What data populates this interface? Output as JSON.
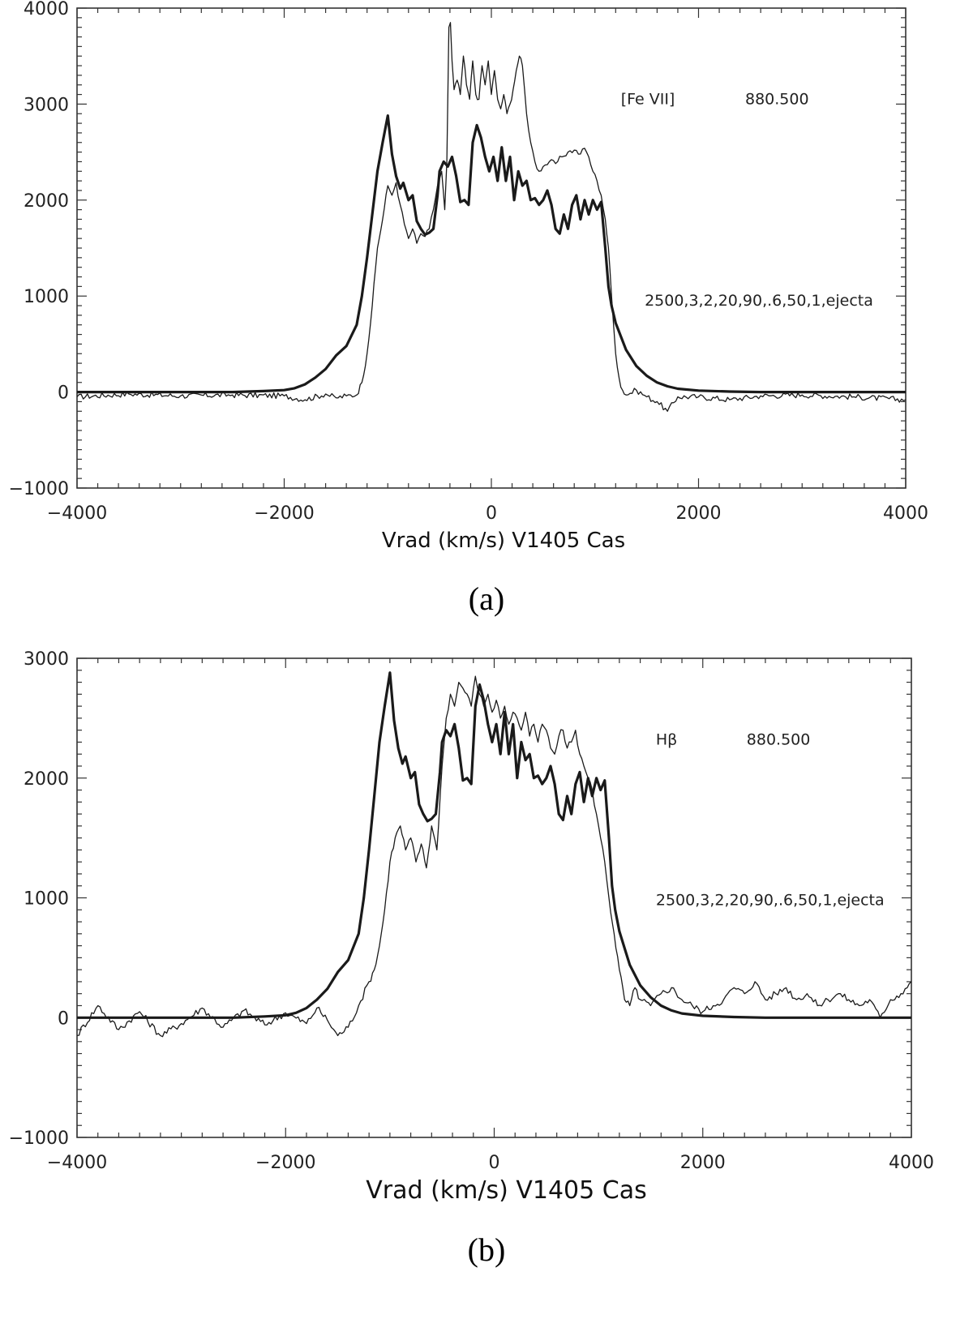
{
  "chart_data": [
    {
      "type": "line",
      "panel_label": "(a)",
      "xlabel": "Vrad (km/s) V1405 Cas",
      "ylabel": "",
      "xlim": [
        -4000,
        4000
      ],
      "ylim": [
        -1000,
        4000
      ],
      "x_ticks": [
        -4000,
        -2000,
        0,
        2000,
        4000
      ],
      "y_ticks": [
        -1000,
        0,
        1000,
        2000,
        3000,
        4000
      ],
      "x_tick_labels": [
        "−4000",
        "−2000",
        "0",
        "2000",
        "4000"
      ],
      "y_tick_labels": [
        "−1000",
        "0",
        "1000",
        "2000",
        "3000",
        "4000"
      ],
      "grid": false,
      "annotations": [
        {
          "text": "[Fe VII]",
          "at": [
            1250,
            3000
          ]
        },
        {
          "text": "880.500",
          "at": [
            2450,
            3000
          ]
        },
        {
          "text": "2500,3,2,20,90,.6,50,1,ejecta",
          "at": [
            1480,
            900
          ]
        }
      ],
      "series": [
        {
          "role": "model",
          "style": "thick",
          "x": [
            -4000,
            -3000,
            -2500,
            -2200,
            -2000,
            -1900,
            -1800,
            -1700,
            -1600,
            -1500,
            -1400,
            -1300,
            -1250,
            -1200,
            -1150,
            -1100,
            -1050,
            -1000,
            -960,
            -920,
            -880,
            -850,
            -800,
            -760,
            -720,
            -680,
            -640,
            -600,
            -560,
            -520,
            -500,
            -460,
            -420,
            -380,
            -340,
            -300,
            -260,
            -220,
            -180,
            -140,
            -100,
            -60,
            -20,
            20,
            60,
            100,
            140,
            180,
            220,
            260,
            300,
            340,
            380,
            420,
            460,
            500,
            540,
            580,
            620,
            660,
            700,
            740,
            780,
            820,
            860,
            900,
            940,
            980,
            1020,
            1060,
            1100,
            1130,
            1160,
            1200,
            1250,
            1300,
            1400,
            1500,
            1600,
            1700,
            1800,
            2000,
            2300,
            2600,
            3000,
            3500,
            4000
          ],
          "y": [
            0,
            0,
            0,
            10,
            20,
            40,
            80,
            150,
            240,
            380,
            480,
            700,
            1000,
            1400,
            1850,
            2300,
            2600,
            2880,
            2480,
            2250,
            2120,
            2180,
            2000,
            2050,
            1780,
            1700,
            1640,
            1660,
            1700,
            2050,
            2300,
            2400,
            2350,
            2450,
            2250,
            1980,
            2000,
            1950,
            2600,
            2780,
            2650,
            2450,
            2300,
            2450,
            2200,
            2550,
            2200,
            2450,
            2000,
            2300,
            2150,
            2200,
            2000,
            2020,
            1950,
            2000,
            2100,
            1950,
            1700,
            1650,
            1850,
            1700,
            1950,
            2050,
            1800,
            2000,
            1850,
            2000,
            1900,
            1980,
            1500,
            1100,
            900,
            720,
            580,
            440,
            270,
            170,
            100,
            60,
            35,
            15,
            5,
            0,
            0,
            0,
            0
          ]
        },
        {
          "role": "observed",
          "style": "thin",
          "x": [
            -4000,
            -3500,
            -3000,
            -2500,
            -2000,
            -1800,
            -1600,
            -1500,
            -1400,
            -1300,
            -1250,
            -1200,
            -1150,
            -1100,
            -1050,
            -1000,
            -960,
            -920,
            -880,
            -840,
            -800,
            -760,
            -720,
            -680,
            -640,
            -600,
            -560,
            -520,
            -480,
            -450,
            -430,
            -410,
            -395,
            -380,
            -360,
            -330,
            -300,
            -270,
            -240,
            -210,
            -180,
            -150,
            -120,
            -90,
            -60,
            -30,
            0,
            30,
            60,
            90,
            120,
            150,
            180,
            210,
            240,
            270,
            300,
            340,
            380,
            420,
            460,
            500,
            560,
            620,
            680,
            740,
            800,
            860,
            900,
            940,
            980,
            1020,
            1060,
            1100,
            1130,
            1160,
            1200,
            1250,
            1300,
            1400,
            1500,
            1600,
            1700,
            1800,
            2000,
            2300,
            2600,
            3000,
            3500,
            4000
          ],
          "y": [
            -50,
            -20,
            -40,
            -30,
            -40,
            -80,
            -20,
            -60,
            -40,
            -30,
            100,
            400,
            900,
            1500,
            1800,
            2150,
            2050,
            2180,
            1950,
            1750,
            1600,
            1700,
            1550,
            1650,
            1620,
            1700,
            1900,
            2150,
            2300,
            1900,
            2400,
            3800,
            3850,
            3450,
            3150,
            3250,
            3100,
            3500,
            3200,
            3050,
            3450,
            3100,
            3050,
            3400,
            3200,
            3450,
            3100,
            3350,
            3050,
            2950,
            3100,
            2900,
            3000,
            3150,
            3350,
            3500,
            3400,
            2900,
            2600,
            2400,
            2300,
            2350,
            2400,
            2380,
            2450,
            2500,
            2520,
            2480,
            2540,
            2450,
            2300,
            2200,
            2050,
            1800,
            1500,
            1000,
            400,
            50,
            -30,
            20,
            -50,
            -100,
            -200,
            -50,
            -50,
            -80,
            -40,
            -30,
            -50,
            -80
          ]
        }
      ]
    },
    {
      "type": "line",
      "panel_label": "(b)",
      "xlabel": "Vrad (km/s) V1405 Cas",
      "ylabel": "",
      "xlim": [
        -4000,
        4000
      ],
      "ylim": [
        -1000,
        3000
      ],
      "x_ticks": [
        -4000,
        -2000,
        0,
        2000,
        4000
      ],
      "y_ticks": [
        -1000,
        0,
        1000,
        2000,
        3000
      ],
      "x_tick_labels": [
        "−4000",
        "−2000",
        "0",
        "2000",
        "4000"
      ],
      "y_tick_labels": [
        "−1000",
        "0",
        "1000",
        "2000",
        "3000"
      ],
      "grid": false,
      "annotations": [
        {
          "text": "Hβ",
          "at": [
            1550,
            2280
          ]
        },
        {
          "text": "880.500",
          "at": [
            2420,
            2280
          ]
        },
        {
          "text": "2500,3,2,20,90,.6,50,1,ejecta",
          "at": [
            1550,
            940
          ]
        }
      ],
      "series": [
        {
          "role": "model",
          "style": "thick",
          "x": [
            -4000,
            -3000,
            -2500,
            -2200,
            -2000,
            -1900,
            -1800,
            -1700,
            -1600,
            -1500,
            -1400,
            -1300,
            -1250,
            -1200,
            -1150,
            -1100,
            -1050,
            -1000,
            -960,
            -920,
            -880,
            -850,
            -800,
            -760,
            -720,
            -680,
            -640,
            -600,
            -560,
            -520,
            -500,
            -460,
            -420,
            -380,
            -340,
            -300,
            -260,
            -220,
            -180,
            -140,
            -100,
            -60,
            -20,
            20,
            60,
            100,
            140,
            180,
            220,
            260,
            300,
            340,
            380,
            420,
            460,
            500,
            540,
            580,
            620,
            660,
            700,
            740,
            780,
            820,
            860,
            900,
            940,
            980,
            1020,
            1060,
            1100,
            1130,
            1160,
            1200,
            1250,
            1300,
            1400,
            1500,
            1600,
            1700,
            1800,
            2000,
            2300,
            2600,
            3000,
            3500,
            4000
          ],
          "y": [
            0,
            0,
            0,
            10,
            20,
            40,
            80,
            150,
            240,
            380,
            480,
            700,
            1000,
            1400,
            1850,
            2300,
            2600,
            2880,
            2480,
            2250,
            2120,
            2180,
            2000,
            2050,
            1780,
            1700,
            1640,
            1660,
            1700,
            2050,
            2300,
            2400,
            2350,
            2450,
            2250,
            1980,
            2000,
            1950,
            2600,
            2780,
            2650,
            2450,
            2300,
            2450,
            2200,
            2550,
            2200,
            2450,
            2000,
            2300,
            2150,
            2200,
            2000,
            2020,
            1950,
            2000,
            2100,
            1950,
            1700,
            1650,
            1850,
            1700,
            1950,
            2050,
            1800,
            2000,
            1850,
            2000,
            1900,
            1980,
            1500,
            1100,
            900,
            720,
            580,
            440,
            270,
            170,
            100,
            60,
            35,
            15,
            5,
            0,
            0,
            0,
            0
          ]
        },
        {
          "role": "observed",
          "style": "thin",
          "x": [
            -4000,
            -3800,
            -3600,
            -3400,
            -3200,
            -3000,
            -2800,
            -2600,
            -2400,
            -2200,
            -2000,
            -1800,
            -1700,
            -1600,
            -1500,
            -1400,
            -1300,
            -1200,
            -1150,
            -1100,
            -1050,
            -1000,
            -950,
            -900,
            -850,
            -800,
            -750,
            -700,
            -650,
            -600,
            -550,
            -500,
            -460,
            -420,
            -380,
            -340,
            -300,
            -260,
            -220,
            -180,
            -140,
            -100,
            -60,
            -20,
            20,
            60,
            100,
            140,
            180,
            220,
            260,
            300,
            340,
            380,
            420,
            460,
            500,
            540,
            580,
            620,
            660,
            700,
            740,
            780,
            820,
            860,
            900,
            940,
            980,
            1020,
            1060,
            1100,
            1150,
            1200,
            1250,
            1300,
            1350,
            1400,
            1500,
            1600,
            1700,
            1800,
            1900,
            2000,
            2100,
            2200,
            2300,
            2400,
            2500,
            2600,
            2700,
            2800,
            2900,
            3000,
            3100,
            3200,
            3300,
            3400,
            3500,
            3600,
            3700,
            3800,
            3900,
            4000
          ],
          "y": [
            -150,
            100,
            -100,
            50,
            -150,
            -50,
            80,
            -80,
            60,
            -60,
            40,
            -50,
            80,
            -20,
            -150,
            -80,
            100,
            300,
            400,
            600,
            900,
            1300,
            1500,
            1600,
            1400,
            1500,
            1300,
            1450,
            1250,
            1600,
            1400,
            2100,
            2500,
            2700,
            2600,
            2800,
            2750,
            2700,
            2600,
            2850,
            2700,
            2600,
            2700,
            2550,
            2650,
            2500,
            2600,
            2450,
            2550,
            2500,
            2400,
            2550,
            2350,
            2450,
            2300,
            2450,
            2400,
            2250,
            2200,
            2350,
            2400,
            2250,
            2300,
            2400,
            2200,
            2100,
            2000,
            1900,
            1700,
            1500,
            1300,
            1000,
            700,
            400,
            150,
            100,
            250,
            150,
            100,
            200,
            250,
            150,
            100,
            50,
            100,
            150,
            250,
            200,
            300,
            150,
            200,
            250,
            150,
            200,
            100,
            150,
            200,
            150,
            100,
            150,
            0,
            150,
            200,
            300
          ]
        }
      ]
    }
  ],
  "panels": {
    "a": {
      "caption": "(a)"
    },
    "b": {
      "caption": "(b)"
    }
  },
  "colors": {
    "line": "#1a1a1a",
    "axis": "#333333",
    "background": "#ffffff"
  }
}
